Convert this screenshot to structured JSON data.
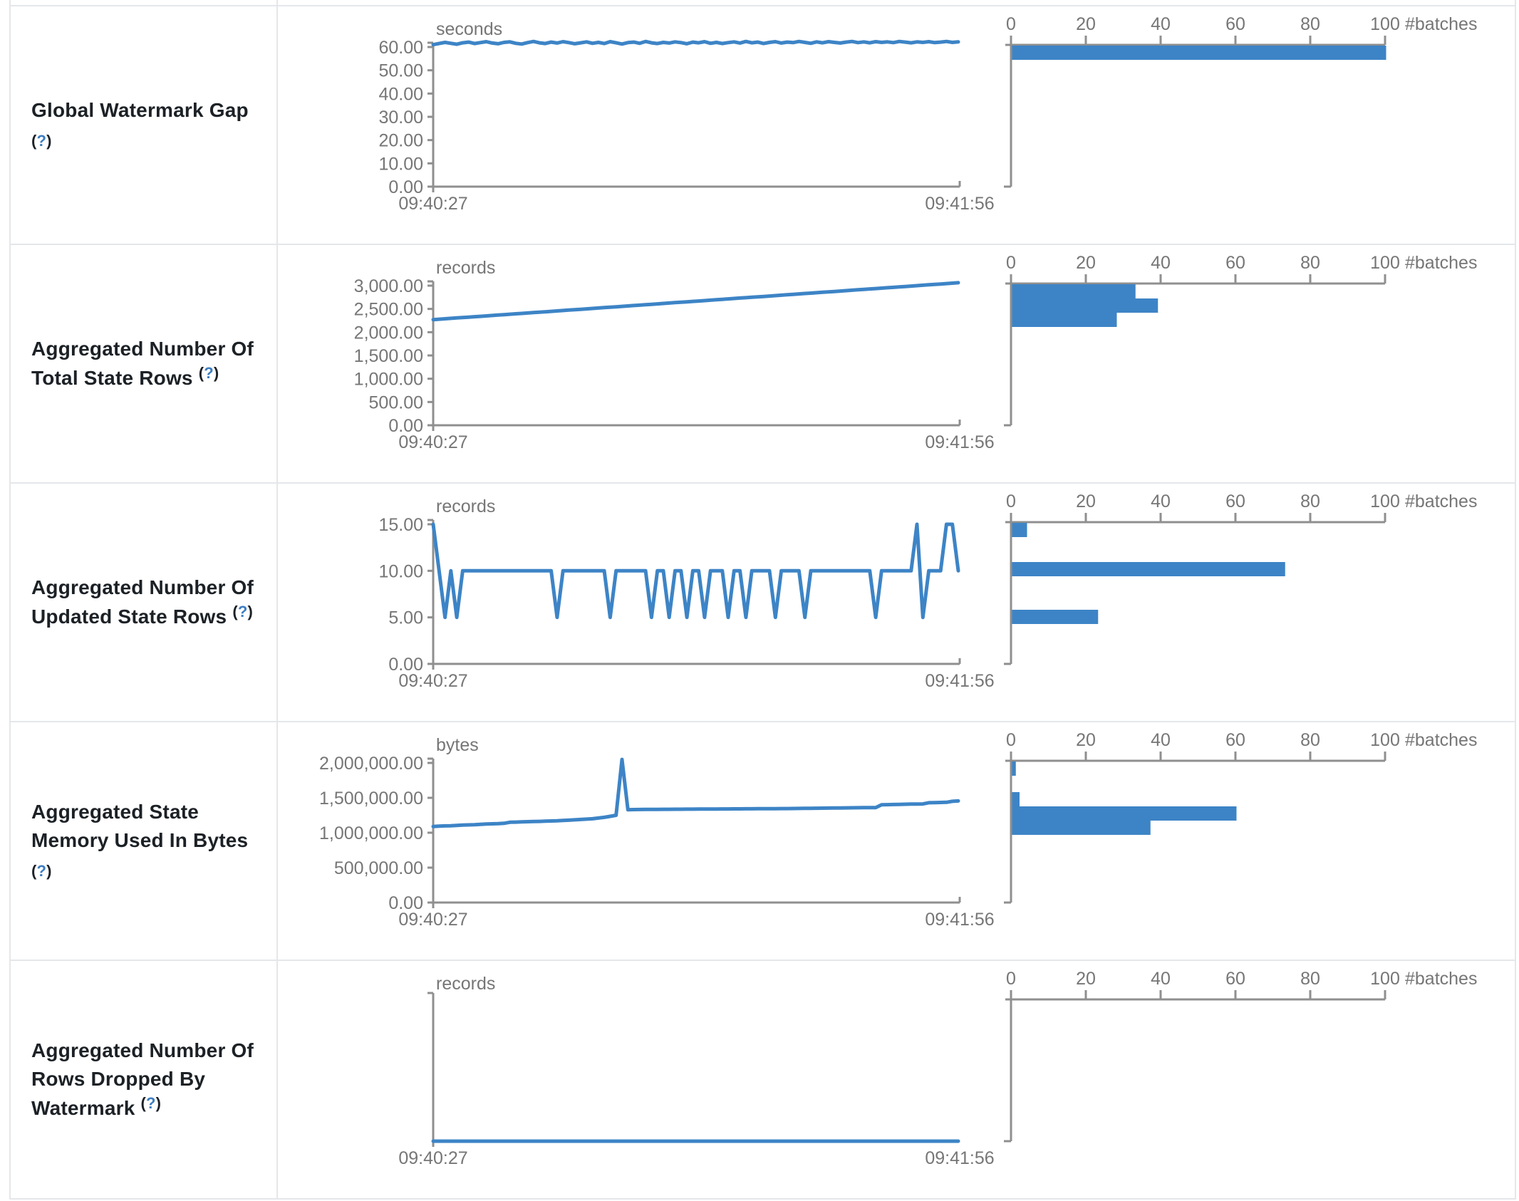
{
  "accent_color": "#3d84c6",
  "axis_color": "#8f8f8f",
  "help_marker": {
    "open": "(",
    "q": "?",
    "close": ")"
  },
  "rows": [
    {
      "label_lines": [
        "Global Watermark Gap"
      ],
      "help_inline": false
    },
    {
      "label_lines": [
        "Aggregated Number Of",
        "Total State Rows"
      ],
      "help_inline": true
    },
    {
      "label_lines": [
        "Aggregated Number Of",
        "Updated State Rows"
      ],
      "help_inline": true
    },
    {
      "label_lines": [
        "Aggregated State",
        "Memory Used In Bytes"
      ],
      "help_inline": false
    },
    {
      "label_lines": [
        "Aggregated Number Of",
        "Rows Dropped By",
        "Watermark"
      ],
      "help_inline": true
    }
  ],
  "chart_data": [
    {
      "type": "line",
      "metric": "Global Watermark Gap",
      "unit": "seconds",
      "x_start": "09:40:27",
      "x_end": "09:41:56",
      "ylim": [
        0,
        60
      ],
      "yticks": [
        "60.00",
        "50.00",
        "40.00",
        "30.00",
        "20.00",
        "10.00",
        "0.00"
      ],
      "values": [
        61,
        61.5,
        62,
        61.6,
        61.2,
        61.8,
        62.1,
        61.5,
        61.9,
        62.3,
        61.7,
        61.4,
        62,
        62.2,
        61.6,
        61.3,
        61.9,
        62.4,
        61.8,
        61.5,
        62.1,
        61.7,
        62.3,
        61.9,
        61.4,
        61.8,
        62.2,
        61.6,
        62,
        61.5,
        62.3,
        61.8,
        61.3,
        61.9,
        62.1,
        61.6,
        62.4,
        61.8,
        61.5,
        62,
        61.7,
        62.2,
        61.9,
        61.4,
        62.1,
        61.8,
        62.3,
        61.6,
        62,
        61.5,
        61.9,
        62.2,
        61.7,
        62.4,
        61.8,
        62.1,
        61.5,
        62,
        62.3,
        61.7,
        62.1,
        61.9,
        62.4,
        62,
        61.6,
        62.2,
        61.8,
        62.3,
        62,
        61.7,
        62.1,
        62.4,
        61.9,
        62.2,
        61.8,
        62.3,
        62,
        62.2,
        61.9,
        62.4,
        62.1,
        61.8,
        62.2,
        62,
        62.3,
        61.9,
        62.1,
        62.4,
        62,
        62.2
      ],
      "histogram": {
        "type": "bar",
        "xlabel": "#batches",
        "xticks": [
          "0",
          "20",
          "40",
          "60",
          "80",
          "100"
        ],
        "xlim": [
          0,
          100
        ],
        "bars": [
          {
            "value_bin": 60,
            "count": 100,
            "y_offset": 55
          }
        ]
      }
    },
    {
      "type": "line",
      "metric": "Aggregated Number Of Total State Rows",
      "unit": "records",
      "x_start": "09:40:27",
      "x_end": "09:41:56",
      "ylim": [
        0,
        3000
      ],
      "yticks": [
        "3,000.00",
        "2,500.00",
        "2,000.00",
        "1,500.00",
        "1,000.00",
        "500.00",
        "0.00"
      ],
      "values": [
        2270,
        2279,
        2288,
        2297,
        2306,
        2314,
        2323,
        2332,
        2341,
        2350,
        2359,
        2368,
        2377,
        2386,
        2395,
        2403,
        2412,
        2421,
        2430,
        2439,
        2448,
        2457,
        2466,
        2475,
        2484,
        2492,
        2501,
        2510,
        2519,
        2528,
        2537,
        2546,
        2555,
        2564,
        2573,
        2581,
        2590,
        2599,
        2608,
        2617,
        2626,
        2635,
        2644,
        2653,
        2662,
        2670,
        2679,
        2688,
        2697,
        2706,
        2715,
        2724,
        2733,
        2742,
        2751,
        2759,
        2768,
        2777,
        2786,
        2795,
        2804,
        2813,
        2822,
        2831,
        2840,
        2848,
        2857,
        2866,
        2875,
        2884,
        2893,
        2902,
        2911,
        2920,
        2929,
        2937,
        2946,
        2955,
        2964,
        2973,
        2982,
        2991,
        3000,
        3009,
        3018,
        3026,
        3035,
        3044,
        3053,
        3062
      ],
      "histogram": {
        "type": "bar",
        "xlabel": "#batches",
        "xticks": [
          "0",
          "20",
          "40",
          "60",
          "80",
          "100"
        ],
        "xlim": [
          0,
          100
        ],
        "bars": [
          {
            "value_bin": 3000,
            "count": 33,
            "y_offset": 55
          },
          {
            "value_bin": 2750,
            "count": 39,
            "y_offset": 75
          },
          {
            "value_bin": 2500,
            "count": 28,
            "y_offset": 95
          }
        ]
      }
    },
    {
      "type": "line",
      "metric": "Aggregated Number Of Updated State Rows",
      "unit": "records",
      "x_start": "09:40:27",
      "x_end": "09:41:56",
      "ylim": [
        0,
        15
      ],
      "yticks": [
        "15.00",
        "10.00",
        "5.00",
        "0.00"
      ],
      "values": [
        15,
        10,
        5,
        10,
        5,
        10,
        10,
        10,
        10,
        10,
        10,
        10,
        10,
        10,
        10,
        10,
        10,
        10,
        10,
        10,
        10,
        5,
        10,
        10,
        10,
        10,
        10,
        10,
        10,
        10,
        5,
        10,
        10,
        10,
        10,
        10,
        10,
        5,
        10,
        10,
        5,
        10,
        10,
        5,
        10,
        10,
        5,
        10,
        10,
        10,
        5,
        10,
        10,
        5,
        10,
        10,
        10,
        10,
        5,
        10,
        10,
        10,
        10,
        5,
        10,
        10,
        10,
        10,
        10,
        10,
        10,
        10,
        10,
        10,
        10,
        5,
        10,
        10,
        10,
        10,
        10,
        10,
        15,
        5,
        10,
        10,
        10,
        15,
        15,
        10
      ],
      "histogram": {
        "type": "bar",
        "xlabel": "#batches",
        "xticks": [
          "0",
          "20",
          "40",
          "60",
          "80",
          "100"
        ],
        "xlim": [
          0,
          100
        ],
        "bars": [
          {
            "value_bin": 15,
            "count": 4,
            "y_offset": 55
          },
          {
            "value_bin": 10,
            "count": 73,
            "y_offset": 110
          },
          {
            "value_bin": 5,
            "count": 23,
            "y_offset": 177
          }
        ]
      }
    },
    {
      "type": "line",
      "metric": "Aggregated State Memory Used In Bytes",
      "unit": "bytes",
      "x_start": "09:40:27",
      "x_end": "09:41:56",
      "ylim": [
        0,
        2000000
      ],
      "yticks": [
        "2,000,000.00",
        "1,500,000.00",
        "1,000,000.00",
        "500,000.00",
        "0.00"
      ],
      "values": [
        1090000,
        1095000,
        1098000,
        1100000,
        1105000,
        1110000,
        1112000,
        1115000,
        1120000,
        1125000,
        1128000,
        1130000,
        1135000,
        1150000,
        1152000,
        1155000,
        1158000,
        1160000,
        1162000,
        1165000,
        1168000,
        1170000,
        1175000,
        1180000,
        1185000,
        1190000,
        1195000,
        1200000,
        1210000,
        1220000,
        1235000,
        1250000,
        2050000,
        1330000,
        1332000,
        1333000,
        1334000,
        1335000,
        1335000,
        1336000,
        1336000,
        1337000,
        1337000,
        1338000,
        1338000,
        1339000,
        1339000,
        1340000,
        1340000,
        1341000,
        1341000,
        1342000,
        1342000,
        1343000,
        1343000,
        1344000,
        1344000,
        1345000,
        1345000,
        1346000,
        1346000,
        1347000,
        1348000,
        1349000,
        1350000,
        1351000,
        1352000,
        1353000,
        1354000,
        1355000,
        1356000,
        1357000,
        1358000,
        1359000,
        1360000,
        1360000,
        1400000,
        1402000,
        1404000,
        1406000,
        1408000,
        1410000,
        1410000,
        1412000,
        1430000,
        1432000,
        1434000,
        1436000,
        1450000,
        1455000
      ],
      "histogram": {
        "type": "bar",
        "xlabel": "#batches",
        "xticks": [
          "0",
          "20",
          "40",
          "60",
          "80",
          "100"
        ],
        "xlim": [
          0,
          100
        ],
        "bars": [
          {
            "value_bin": 2000000,
            "count": 1,
            "y_offset": 55
          },
          {
            "value_bin": 1500000,
            "count": 2,
            "y_offset": 98
          },
          {
            "value_bin": 1300000,
            "count": 60,
            "y_offset": 118
          },
          {
            "value_bin": 1100000,
            "count": 37,
            "y_offset": 138
          }
        ]
      }
    },
    {
      "type": "line",
      "metric": "Aggregated Number Of Rows Dropped By Watermark",
      "unit": "records",
      "x_start": "09:40:27",
      "x_end": "09:41:56",
      "ylim": [
        0,
        1
      ],
      "yticks": [],
      "values": [
        0,
        0,
        0,
        0,
        0,
        0,
        0,
        0,
        0,
        0,
        0,
        0,
        0,
        0,
        0,
        0,
        0,
        0,
        0,
        0,
        0,
        0,
        0,
        0,
        0,
        0,
        0,
        0,
        0,
        0,
        0,
        0,
        0,
        0,
        0,
        0,
        0,
        0,
        0,
        0,
        0,
        0,
        0,
        0,
        0,
        0,
        0,
        0,
        0,
        0,
        0,
        0,
        0,
        0,
        0,
        0,
        0,
        0,
        0,
        0,
        0,
        0,
        0,
        0,
        0,
        0,
        0,
        0,
        0,
        0,
        0,
        0,
        0,
        0,
        0,
        0,
        0,
        0,
        0,
        0,
        0,
        0,
        0,
        0,
        0,
        0,
        0,
        0,
        0,
        0
      ],
      "histogram": {
        "type": "bar",
        "xlabel": "#batches",
        "xticks": [
          "0",
          "20",
          "40",
          "60",
          "80",
          "100"
        ],
        "xlim": [
          0,
          100
        ],
        "bars": []
      }
    }
  ]
}
